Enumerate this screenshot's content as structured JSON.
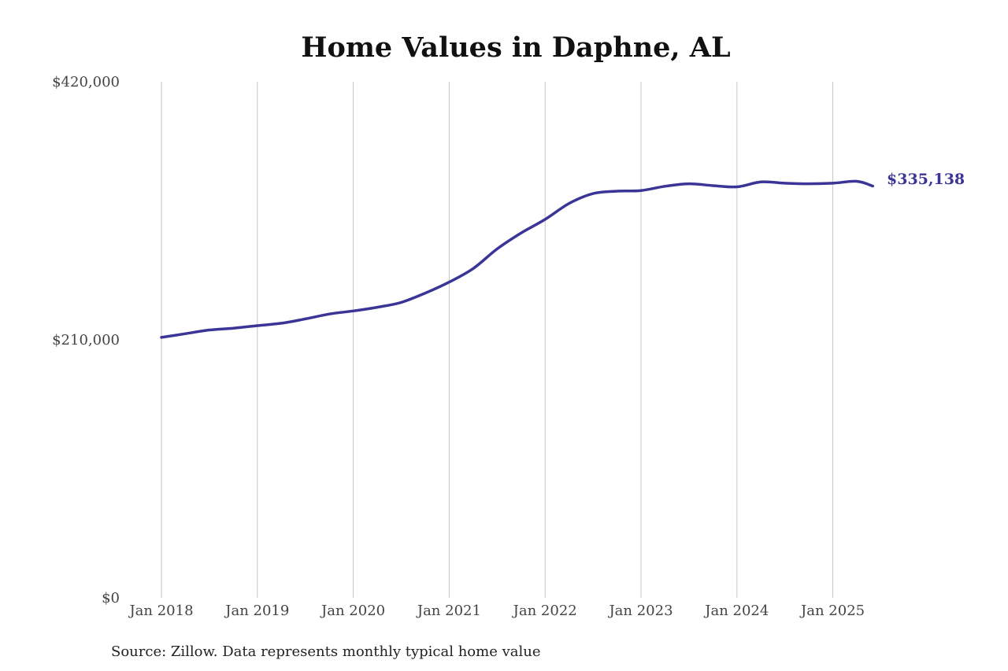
{
  "source_note": "Source: Zillow. Data represents monthly typical home value",
  "colors": {
    "line": "#3a3596",
    "grid": "#c4c4c4",
    "text": "#444444"
  },
  "chart_data": {
    "type": "line",
    "title": "Home Values in Daphne, AL",
    "xlabel": "",
    "ylabel": "",
    "ylim": [
      0,
      420000
    ],
    "yticks": [
      0,
      210000,
      420000
    ],
    "ytick_labels": [
      "$0",
      "$210,000",
      "$420,000"
    ],
    "xticks": [
      "2018-01",
      "2019-01",
      "2020-01",
      "2021-01",
      "2022-01",
      "2023-01",
      "2024-01",
      "2025-01"
    ],
    "xtick_labels": [
      "Jan 2018",
      "Jan 2019",
      "Jan 2020",
      "Jan 2021",
      "Jan 2022",
      "Jan 2023",
      "Jan 2024",
      "Jan 2025"
    ],
    "x_grid": true,
    "y_grid": false,
    "end_label": "$335,138",
    "series": [
      {
        "color": "#3a3596",
        "points": [
          [
            "2018-01",
            212000
          ],
          [
            "2018-04",
            215000
          ],
          [
            "2018-07",
            218000
          ],
          [
            "2018-10",
            219500
          ],
          [
            "2019-01",
            221500
          ],
          [
            "2019-04",
            223500
          ],
          [
            "2019-07",
            227000
          ],
          [
            "2019-10",
            231000
          ],
          [
            "2020-01",
            233500
          ],
          [
            "2020-04",
            236500
          ],
          [
            "2020-07",
            240500
          ],
          [
            "2020-10",
            248000
          ],
          [
            "2021-01",
            257000
          ],
          [
            "2021-04",
            268000
          ],
          [
            "2021-07",
            284000
          ],
          [
            "2021-10",
            297000
          ],
          [
            "2022-01",
            308000
          ],
          [
            "2022-04",
            321000
          ],
          [
            "2022-07",
            329000
          ],
          [
            "2022-10",
            331000
          ],
          [
            "2023-01",
            331500
          ],
          [
            "2023-04",
            335000
          ],
          [
            "2023-07",
            337000
          ],
          [
            "2023-10",
            335500
          ],
          [
            "2024-01",
            334500
          ],
          [
            "2024-04",
            338500
          ],
          [
            "2024-07",
            337500
          ],
          [
            "2024-10",
            337000
          ],
          [
            "2025-01",
            337500
          ],
          [
            "2025-04",
            339000
          ],
          [
            "2025-06",
            335138
          ]
        ]
      }
    ]
  }
}
